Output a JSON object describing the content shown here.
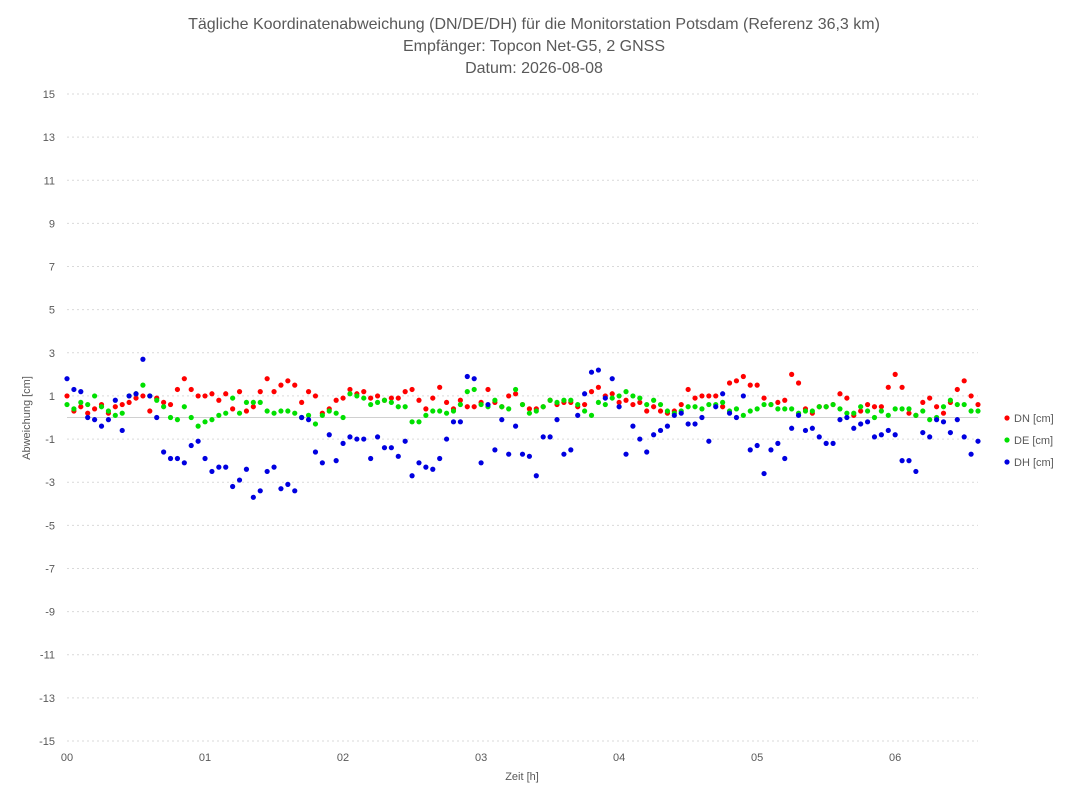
{
  "chart_data": {
    "type": "scatter",
    "title_lines": [
      "Tägliche Koordinatenabweichung (DN/DE/DH) für die Monitorstation Potsdam (Referenz 36,3 km)",
      "Empfänger: Topcon Net-G5, 2 GNSS",
      "Datum: 2026-08-08"
    ],
    "xlabel": "Zeit [h]",
    "ylabel": "Abweichung [cm]",
    "xlim": [
      0,
      6.6
    ],
    "ylim": [
      -15,
      15
    ],
    "x_ticks": [
      0,
      1,
      2,
      3,
      4,
      5,
      6
    ],
    "x_tick_labels": [
      "00",
      "01",
      "02",
      "03",
      "04",
      "05",
      "06"
    ],
    "y_ticks": [
      -15,
      -13,
      -11,
      -9,
      -7,
      -5,
      -3,
      -1,
      1,
      3,
      5,
      7,
      9,
      11,
      13,
      15
    ],
    "grid": true,
    "legend_position": "right",
    "series": [
      {
        "name": "DN [cm]",
        "color": "#ff0000",
        "x": [
          0.0,
          0.05,
          0.1,
          0.15,
          0.2,
          0.25,
          0.3,
          0.35,
          0.4,
          0.45,
          0.5,
          0.55,
          0.6,
          0.65,
          0.7,
          0.75,
          0.8,
          0.85,
          0.9,
          0.95,
          1.0,
          1.05,
          1.1,
          1.15,
          1.2,
          1.25,
          1.3,
          1.35,
          1.4,
          1.45,
          1.5,
          1.55,
          1.6,
          1.65,
          1.7,
          1.75,
          1.8,
          1.85,
          1.9,
          1.95,
          2.0,
          2.05,
          2.1,
          2.15,
          2.2,
          2.25,
          2.3,
          2.35,
          2.4,
          2.45,
          2.5,
          2.55,
          2.6,
          2.65,
          2.7,
          2.75,
          2.8,
          2.85,
          2.9,
          2.95,
          3.0,
          3.05,
          3.1,
          3.15,
          3.2,
          3.25,
          3.3,
          3.35,
          3.4,
          3.45,
          3.5,
          3.55,
          3.6,
          3.65,
          3.7,
          3.75,
          3.8,
          3.85,
          3.9,
          3.95,
          4.0,
          4.05,
          4.1,
          4.15,
          4.2,
          4.25,
          4.3,
          4.35,
          4.4,
          4.45,
          4.5,
          4.55,
          4.6,
          4.65,
          4.7,
          4.75,
          4.8,
          4.85,
          4.9,
          4.95,
          5.0,
          5.05,
          5.1,
          5.15,
          5.2,
          5.25,
          5.3,
          5.35,
          5.4,
          5.45,
          5.5,
          5.55,
          5.6,
          5.65,
          5.7,
          5.75,
          5.8,
          5.85,
          5.9,
          5.95,
          6.0,
          6.05,
          6.1,
          6.15,
          6.2,
          6.25,
          6.3,
          6.35,
          6.4,
          6.45,
          6.5,
          6.55,
          6.6
        ],
        "y": [
          1.0,
          0.3,
          0.5,
          0.2,
          0.4,
          0.6,
          0.2,
          0.5,
          0.6,
          0.7,
          0.9,
          1.0,
          0.3,
          0.9,
          0.7,
          0.6,
          1.3,
          1.8,
          1.3,
          1.0,
          1.0,
          1.1,
          0.8,
          1.1,
          0.4,
          1.2,
          0.3,
          0.5,
          1.2,
          1.8,
          1.2,
          1.5,
          1.7,
          1.5,
          0.7,
          1.2,
          1.0,
          0.2,
          0.4,
          0.8,
          0.9,
          1.3,
          1.1,
          1.2,
          0.9,
          1.0,
          0.8,
          0.9,
          0.9,
          1.2,
          1.3,
          0.8,
          0.4,
          0.9,
          1.4,
          0.7,
          0.4,
          0.8,
          0.5,
          0.5,
          0.7,
          1.3,
          0.7,
          0.5,
          1.0,
          1.1,
          0.6,
          0.4,
          0.4,
          0.5,
          0.8,
          0.6,
          0.7,
          0.7,
          0.5,
          0.6,
          1.2,
          1.4,
          1.0,
          1.1,
          0.7,
          0.8,
          0.6,
          0.7,
          0.3,
          0.5,
          0.3,
          0.2,
          0.3,
          0.6,
          1.3,
          0.9,
          1.0,
          1.0,
          1.0,
          0.5,
          1.6,
          1.7,
          1.9,
          1.5,
          1.5,
          0.9,
          0.6,
          0.7,
          0.8,
          2.0,
          1.6,
          0.4,
          0.2,
          0.5,
          0.5,
          0.6,
          1.1,
          0.9,
          0.1,
          0.3,
          0.6,
          0.5,
          0.5,
          1.4,
          2.0,
          1.4,
          0.2,
          0.1,
          0.7,
          0.9,
          0.5,
          0.2,
          0.7,
          1.3,
          1.7,
          1.0,
          0.6
        ]
      },
      {
        "name": "DE [cm]",
        "color": "#00e000",
        "x": [
          0.0,
          0.05,
          0.1,
          0.15,
          0.2,
          0.25,
          0.3,
          0.35,
          0.4,
          0.45,
          0.5,
          0.55,
          0.6,
          0.65,
          0.7,
          0.75,
          0.8,
          0.85,
          0.9,
          0.95,
          1.0,
          1.05,
          1.1,
          1.15,
          1.2,
          1.25,
          1.3,
          1.35,
          1.4,
          1.45,
          1.5,
          1.55,
          1.6,
          1.65,
          1.7,
          1.75,
          1.8,
          1.85,
          1.9,
          1.95,
          2.0,
          2.05,
          2.1,
          2.15,
          2.2,
          2.25,
          2.3,
          2.35,
          2.4,
          2.45,
          2.5,
          2.55,
          2.6,
          2.65,
          2.7,
          2.75,
          2.8,
          2.85,
          2.9,
          2.95,
          3.0,
          3.05,
          3.1,
          3.15,
          3.2,
          3.25,
          3.3,
          3.35,
          3.4,
          3.45,
          3.5,
          3.55,
          3.6,
          3.65,
          3.7,
          3.75,
          3.8,
          3.85,
          3.9,
          3.95,
          4.0,
          4.05,
          4.1,
          4.15,
          4.2,
          4.25,
          4.3,
          4.35,
          4.4,
          4.45,
          4.5,
          4.55,
          4.6,
          4.65,
          4.7,
          4.75,
          4.8,
          4.85,
          4.9,
          4.95,
          5.0,
          5.05,
          5.1,
          5.15,
          5.2,
          5.25,
          5.3,
          5.35,
          5.4,
          5.45,
          5.5,
          5.55,
          5.6,
          5.65,
          5.7,
          5.75,
          5.8,
          5.85,
          5.9,
          5.95,
          6.0,
          6.05,
          6.1,
          6.15,
          6.2,
          6.25,
          6.3,
          6.35,
          6.4,
          6.45,
          6.5,
          6.55,
          6.6
        ],
        "y": [
          0.6,
          0.4,
          0.7,
          0.6,
          1.0,
          0.5,
          0.3,
          0.1,
          0.2,
          1.0,
          1.1,
          1.5,
          1.0,
          0.8,
          0.5,
          0.0,
          -0.1,
          0.5,
          0.0,
          -0.4,
          -0.2,
          -0.1,
          0.1,
          0.2,
          0.9,
          0.2,
          0.7,
          0.7,
          0.7,
          0.3,
          0.2,
          0.3,
          0.3,
          0.2,
          0.0,
          0.1,
          -0.3,
          0.1,
          0.3,
          0.2,
          0.0,
          1.1,
          1.0,
          0.9,
          0.6,
          0.7,
          0.8,
          0.7,
          0.5,
          0.5,
          -0.2,
          -0.2,
          0.1,
          0.3,
          0.3,
          0.2,
          0.3,
          0.6,
          1.2,
          1.3,
          0.6,
          0.5,
          0.8,
          0.5,
          0.4,
          1.3,
          0.6,
          0.2,
          0.3,
          0.5,
          0.8,
          0.7,
          0.8,
          0.8,
          0.6,
          0.3,
          0.1,
          0.7,
          0.6,
          0.9,
          1.0,
          1.2,
          1.0,
          0.9,
          0.6,
          0.8,
          0.6,
          0.3,
          0.2,
          0.3,
          0.5,
          0.5,
          0.4,
          0.6,
          0.6,
          0.7,
          0.3,
          0.4,
          0.1,
          0.3,
          0.4,
          0.6,
          0.6,
          0.4,
          0.4,
          0.4,
          0.2,
          0.3,
          0.3,
          0.5,
          0.5,
          0.6,
          0.4,
          0.2,
          0.2,
          0.5,
          0.3,
          0.0,
          0.3,
          0.1,
          0.4,
          0.4,
          0.4,
          0.1,
          0.3,
          -0.1,
          0.0,
          0.5,
          0.8,
          0.6,
          0.6,
          0.3,
          0.3
        ]
      },
      {
        "name": "DH [cm]",
        "color": "#0000e0",
        "x": [
          0.0,
          0.05,
          0.1,
          0.15,
          0.2,
          0.25,
          0.3,
          0.35,
          0.4,
          0.45,
          0.5,
          0.55,
          0.6,
          0.65,
          0.7,
          0.75,
          0.8,
          0.85,
          0.9,
          0.95,
          1.0,
          1.05,
          1.1,
          1.15,
          1.2,
          1.25,
          1.3,
          1.35,
          1.4,
          1.45,
          1.5,
          1.55,
          1.6,
          1.65,
          1.7,
          1.75,
          1.8,
          1.85,
          1.9,
          1.95,
          2.0,
          2.05,
          2.1,
          2.15,
          2.2,
          2.25,
          2.3,
          2.35,
          2.4,
          2.45,
          2.5,
          2.55,
          2.6,
          2.65,
          2.7,
          2.75,
          2.8,
          2.85,
          2.9,
          2.95,
          3.0,
          3.05,
          3.1,
          3.15,
          3.2,
          3.25,
          3.3,
          3.35,
          3.4,
          3.45,
          3.5,
          3.55,
          3.6,
          3.65,
          3.7,
          3.75,
          3.8,
          3.85,
          3.9,
          3.95,
          4.0,
          4.05,
          4.1,
          4.15,
          4.2,
          4.25,
          4.3,
          4.35,
          4.4,
          4.45,
          4.5,
          4.55,
          4.6,
          4.65,
          4.7,
          4.75,
          4.8,
          4.85,
          4.9,
          4.95,
          5.0,
          5.05,
          5.1,
          5.15,
          5.2,
          5.25,
          5.3,
          5.35,
          5.4,
          5.45,
          5.5,
          5.55,
          5.6,
          5.65,
          5.7,
          5.75,
          5.8,
          5.85,
          5.9,
          5.95,
          6.0,
          6.05,
          6.1,
          6.15,
          6.2,
          6.25,
          6.3,
          6.35,
          6.4,
          6.45,
          6.5,
          6.55,
          6.6
        ],
        "y": [
          1.8,
          1.3,
          1.2,
          0.0,
          -0.1,
          -0.4,
          -0.1,
          0.8,
          -0.6,
          1.0,
          1.1,
          2.7,
          1.0,
          0.0,
          -1.6,
          -1.9,
          -1.9,
          -2.1,
          -1.3,
          -1.1,
          -1.9,
          -2.5,
          -2.3,
          -2.3,
          -3.2,
          -2.9,
          -2.4,
          -3.7,
          -3.4,
          -2.5,
          -2.3,
          -3.3,
          -3.1,
          -3.4,
          0.0,
          -0.1,
          -1.6,
          -2.1,
          -0.8,
          -2.0,
          -1.2,
          -0.9,
          -1.0,
          -1.0,
          -1.9,
          -0.9,
          -1.4,
          -1.4,
          -1.8,
          -1.1,
          -2.7,
          -2.1,
          -2.3,
          -2.4,
          -1.9,
          -1.0,
          -0.2,
          -0.2,
          1.9,
          1.8,
          -2.1,
          0.6,
          -1.5,
          -0.1,
          -1.7,
          -0.4,
          -1.7,
          -1.8,
          -2.7,
          -0.9,
          -0.9,
          -0.1,
          -1.7,
          -1.5,
          0.1,
          1.1,
          2.1,
          2.2,
          0.9,
          1.8,
          0.5,
          -1.7,
          -0.4,
          -1.0,
          -1.6,
          -0.8,
          -0.6,
          -0.4,
          0.1,
          0.2,
          -0.3,
          -0.3,
          0.0,
          -1.1,
          0.5,
          1.1,
          0.2,
          0.0,
          1.0,
          -1.5,
          -1.3,
          -2.6,
          -1.5,
          -1.2,
          -1.9,
          -0.5,
          0.1,
          -0.6,
          -0.5,
          -0.9,
          -1.2,
          -1.2,
          -0.1,
          0.0,
          -0.5,
          -0.3,
          -0.2,
          -0.9,
          -0.8,
          -0.6,
          -0.8,
          -2.0,
          -2.0,
          -2.5,
          -0.7,
          -0.9,
          -0.1,
          -0.2,
          -0.7,
          -0.1,
          -0.9,
          -1.7,
          -1.1
        ]
      }
    ]
  }
}
